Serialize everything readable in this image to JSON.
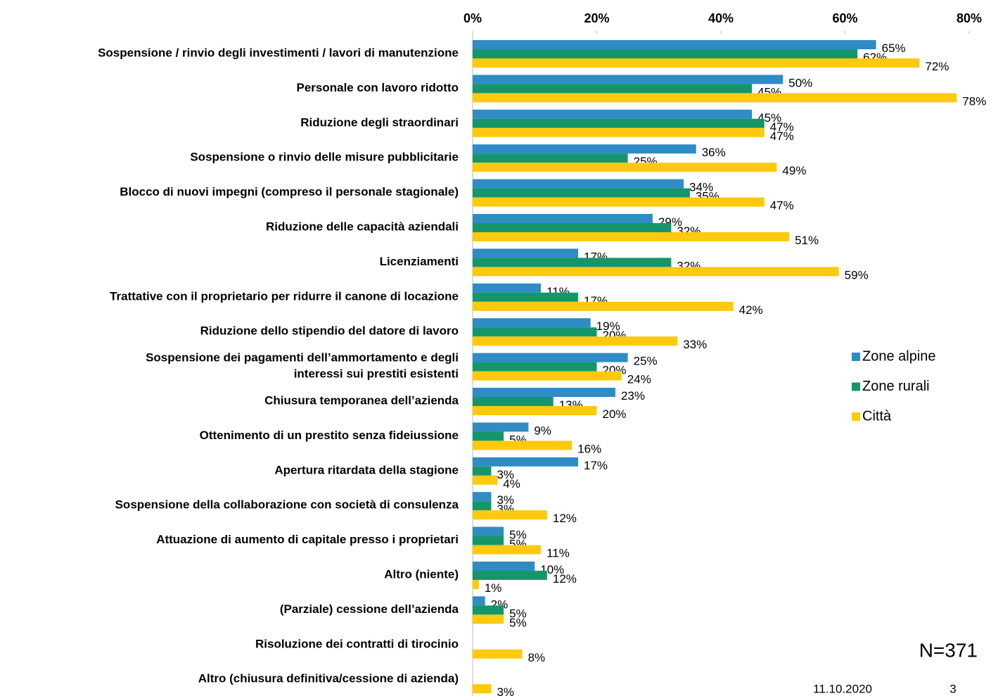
{
  "chart_data": {
    "type": "bar",
    "orientation": "horizontal",
    "categories": [
      "Sospensione / rinvio degli investimenti / lavori di manutenzione",
      "Personale con lavoro ridotto",
      "Riduzione degli straordinari",
      "Sospensione o rinvio delle misure pubblicitarie",
      "Blocco di nuovi impegni (compreso il personale stagionale)",
      "Riduzione delle capacità aziendali",
      "Licenziamenti",
      "Trattative con il proprietario per ridurre il canone di locazione",
      "Riduzione dello stipendio del datore di lavoro",
      "Sospensione dei pagamenti dell’ammortamento e degli\ninteressi sui prestiti esistenti",
      "Chiusura temporanea dell’azienda",
      "Ottenimento di un prestito senza fideiussione",
      "Apertura ritardata della stagione",
      "Sospensione della collaborazione con società di consulenza",
      "Attuazione di aumento di capitale presso i proprietari",
      "Altro (niente)",
      "(Parziale) cessione dell’azienda",
      "Risoluzione dei contratti di tirocinio",
      "Altro (chiusura definitiva/cessione di azienda)"
    ],
    "series": [
      {
        "name": "Zone alpine",
        "color": "#2f8cc4",
        "values": [
          65,
          50,
          45,
          36,
          34,
          29,
          17,
          11,
          19,
          25,
          23,
          9,
          17,
          3,
          5,
          10,
          2,
          null,
          null
        ],
        "value_labels": [
          "65%",
          "50%",
          "45%",
          "36%",
          "34%",
          "29%",
          "17%",
          "11%",
          "19%",
          "25%",
          "23%",
          "9%",
          "17%",
          "3%",
          "5%",
          "10%",
          "2%",
          null,
          null
        ]
      },
      {
        "name": "Zone rurali",
        "color": "#15966a",
        "values": [
          62,
          45,
          47,
          25,
          35,
          32,
          32,
          17,
          20,
          20,
          13,
          5,
          3,
          3,
          5,
          12,
          5,
          null,
          null
        ],
        "value_labels": [
          "62%",
          "45%",
          "47%",
          "25%",
          "35%",
          "32%",
          "32%",
          "17%",
          "20%",
          "20%",
          "13%",
          "5%",
          "3%",
          "3%",
          "5%",
          "12%",
          "5%",
          null,
          null
        ]
      },
      {
        "name": "Città",
        "color": "#ffc90e",
        "values": [
          72,
          78,
          47,
          49,
          47,
          51,
          59,
          42,
          33,
          24,
          20,
          16,
          4,
          12,
          11,
          1,
          5,
          8,
          3
        ],
        "value_labels": [
          "72%",
          "78%",
          "47%",
          "49%",
          "47%",
          "51%",
          "59%",
          "42%",
          "33%",
          "24%",
          "20%",
          "16%",
          "4%",
          "12%",
          "11%",
          "1%",
          "5%",
          "8%",
          "3%"
        ]
      }
    ],
    "xlim": [
      0,
      80
    ],
    "xticks": [
      {
        "value": 0,
        "label": "0%"
      },
      {
        "value": 20,
        "label": "20%"
      },
      {
        "value": 40,
        "label": "40%"
      },
      {
        "value": 60,
        "label": "60%"
      },
      {
        "value": 80,
        "label": "80%"
      }
    ],
    "legend": "right",
    "annotations": [
      "N=371",
      "11.10.2020",
      "3"
    ]
  }
}
